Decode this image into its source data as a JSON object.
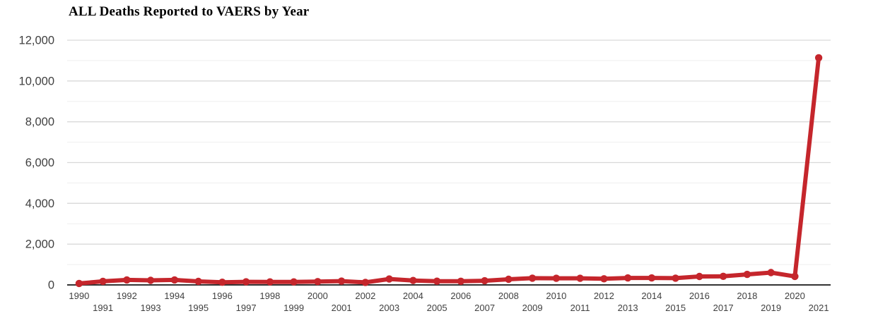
{
  "title": "ALL Deaths Reported to VAERS by Year",
  "chart_data": {
    "type": "line",
    "title": "ALL Deaths Reported to VAERS by Year",
    "xlabel": "",
    "ylabel": "",
    "x": [
      1990,
      1991,
      1992,
      1993,
      1994,
      1995,
      1996,
      1997,
      1998,
      1999,
      2000,
      2001,
      2002,
      2003,
      2004,
      2005,
      2006,
      2007,
      2008,
      2009,
      2010,
      2011,
      2012,
      2013,
      2014,
      2015,
      2016,
      2017,
      2018,
      2019,
      2020,
      2021
    ],
    "series": [
      {
        "name": "All Deaths Reported to VAERS",
        "values": [
          74,
          175,
          247,
          224,
          246,
          172,
          132,
          152,
          147,
          147,
          164,
          186,
          126,
          292,
          217,
          183,
          179,
          204,
          278,
          332,
          324,
          326,
          300,
          342,
          343,
          332,
          414,
          421,
          514,
          605,
          420,
          11140
        ]
      }
    ],
    "ylim": [
      0,
      12000
    ],
    "y_major_ticks": [
      {
        "value": 0,
        "label": "0"
      },
      {
        "value": 2000,
        "label": "2,000"
      },
      {
        "value": 4000,
        "label": "4,000"
      },
      {
        "value": 6000,
        "label": "6,000"
      },
      {
        "value": 8000,
        "label": "8,000"
      },
      {
        "value": 10000,
        "label": "10,000"
      },
      {
        "value": 12000,
        "label": "12,000"
      }
    ],
    "y_minor_gridlines": [
      1000,
      3000,
      5000,
      7000,
      9000,
      11000
    ],
    "grid": true,
    "legend_position": "none",
    "x_label_layout": "staggered-two-rows",
    "colors": {
      "line": "#c5262c",
      "point": "#c5262c",
      "major_grid": "#d9d9d9",
      "minor_grid": "#efefef",
      "axis_line": "#333333",
      "tick_label": "#404040",
      "title": "#000000",
      "background": "#ffffff"
    }
  }
}
